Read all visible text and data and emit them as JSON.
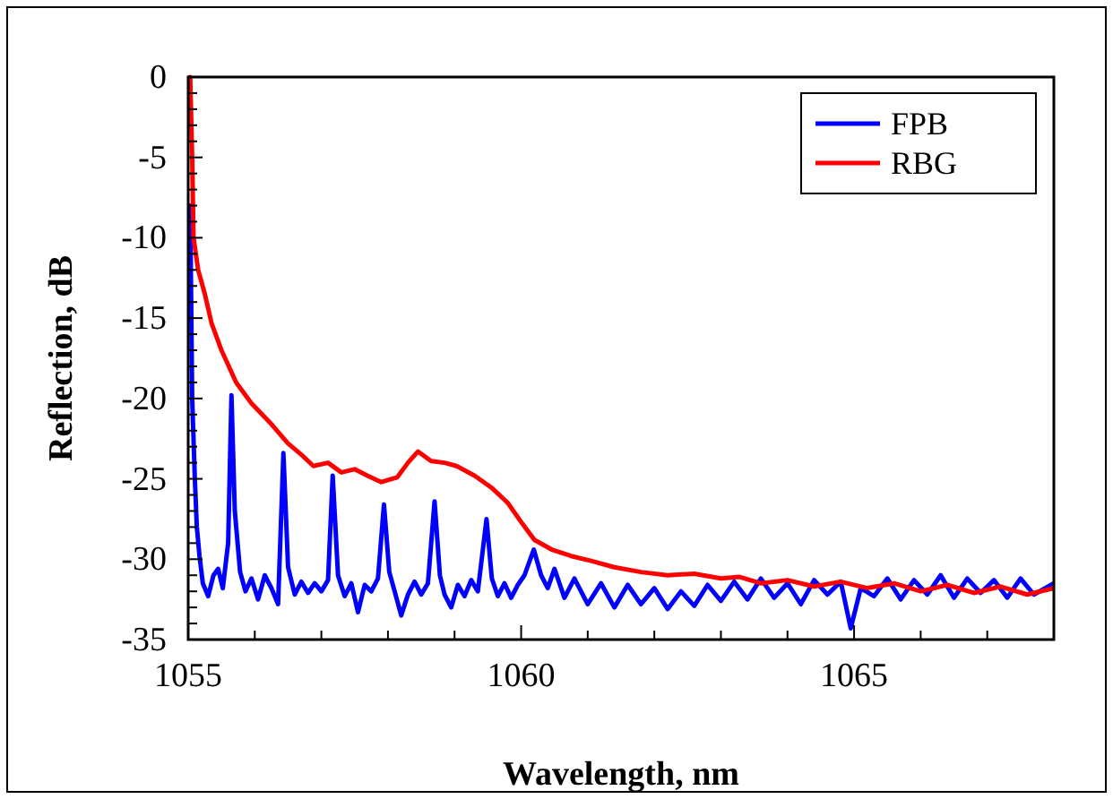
{
  "chart_data": {
    "type": "line",
    "xlabel": "Wavelength, nm",
    "ylabel": "Reflection, dB",
    "xlim": [
      1055,
      1068
    ],
    "ylim": [
      -35,
      0
    ],
    "xticks": [
      1055,
      {
        "value": 1056,
        "label": null
      },
      {
        "value": 1057,
        "label": null
      },
      {
        "value": 1058,
        "label": null
      },
      {
        "value": 1059,
        "label": null
      },
      1060,
      {
        "value": 1061,
        "label": null
      },
      {
        "value": 1062,
        "label": null
      },
      {
        "value": 1063,
        "label": null
      },
      {
        "value": 1064,
        "label": null
      },
      1065,
      {
        "value": 1066,
        "label": null
      },
      {
        "value": 1067,
        "label": null
      }
    ],
    "yticks": [
      -35,
      -30,
      -25,
      -20,
      -15,
      -10,
      -5,
      0
    ],
    "grid": false,
    "legend": "top right",
    "marker": "none",
    "line_style": "solid",
    "series": [
      {
        "name": "FPB",
        "color": "#0000ff",
        "x": [
          1055.03,
          1055.06,
          1055.1,
          1055.13,
          1055.17,
          1055.22,
          1055.3,
          1055.38,
          1055.45,
          1055.52,
          1055.6,
          1055.65,
          1055.7,
          1055.78,
          1055.86,
          1055.95,
          1056.05,
          1056.15,
          1056.25,
          1056.35,
          1056.43,
          1056.5,
          1056.6,
          1056.7,
          1056.8,
          1056.9,
          1057.0,
          1057.1,
          1057.17,
          1057.25,
          1057.35,
          1057.45,
          1057.55,
          1057.65,
          1057.75,
          1057.85,
          1057.94,
          1058.02,
          1058.1,
          1058.2,
          1058.3,
          1058.4,
          1058.5,
          1058.6,
          1058.7,
          1058.78,
          1058.85,
          1058.95,
          1059.05,
          1059.15,
          1059.25,
          1059.35,
          1059.48,
          1059.56,
          1059.65,
          1059.75,
          1059.85,
          1059.95,
          1060.05,
          1060.19,
          1060.3,
          1060.4,
          1060.5,
          1060.65,
          1060.8,
          1061.0,
          1061.2,
          1061.4,
          1061.6,
          1061.8,
          1062.0,
          1062.2,
          1062.4,
          1062.6,
          1062.8,
          1063.0,
          1063.2,
          1063.4,
          1063.6,
          1063.8,
          1064.0,
          1064.2,
          1064.4,
          1064.6,
          1064.8,
          1064.95,
          1065.1,
          1065.3,
          1065.5,
          1065.7,
          1065.9,
          1066.1,
          1066.3,
          1066.5,
          1066.7,
          1066.9,
          1067.1,
          1067.3,
          1067.5,
          1067.7,
          1068.0
        ],
        "values": [
          -8,
          -20,
          -25,
          -28,
          -29.8,
          -31.5,
          -32.3,
          -31,
          -30.6,
          -31.8,
          -29,
          -19.8,
          -27,
          -30.8,
          -32,
          -31.2,
          -32.5,
          -31,
          -31.8,
          -32.8,
          -23.4,
          -30.5,
          -32.2,
          -31.4,
          -32.1,
          -31.5,
          -32,
          -31.3,
          -24.8,
          -31,
          -32.3,
          -31.5,
          -33.3,
          -31.6,
          -32,
          -31.2,
          -26.6,
          -30.8,
          -32,
          -33.5,
          -32.2,
          -31.4,
          -32.2,
          -31.5,
          -26.4,
          -31,
          -32.2,
          -33,
          -31.6,
          -32.3,
          -31.3,
          -32,
          -27.5,
          -31.2,
          -32.3,
          -31.5,
          -32.4,
          -31.6,
          -31,
          -29.4,
          -31,
          -31.8,
          -30.6,
          -32.4,
          -31.2,
          -32.8,
          -31.5,
          -33,
          -31.6,
          -32.8,
          -31.8,
          -33.1,
          -32,
          -32.9,
          -31.6,
          -32.6,
          -31.4,
          -32.5,
          -31.2,
          -32.4,
          -31.5,
          -32.8,
          -31.3,
          -32.2,
          -31.4,
          -34.3,
          -31.8,
          -32.3,
          -31.2,
          -32.5,
          -31.3,
          -32.2,
          -31,
          -32.4,
          -31.2,
          -32.1,
          -31.3,
          -32.4,
          -31.2,
          -32.2,
          -31.5
        ]
      },
      {
        "name": "RBG",
        "color": "#ff0000",
        "x": [
          1055.03,
          1055.06,
          1055.08,
          1055.15,
          1055.25,
          1055.35,
          1055.5,
          1055.72,
          1055.95,
          1056.25,
          1056.5,
          1056.7,
          1056.88,
          1057.1,
          1057.3,
          1057.5,
          1057.69,
          1057.9,
          1058.14,
          1058.3,
          1058.45,
          1058.65,
          1058.85,
          1059.03,
          1059.3,
          1059.57,
          1059.8,
          1060.02,
          1060.2,
          1060.46,
          1060.75,
          1061.05,
          1061.4,
          1061.8,
          1062.2,
          1062.6,
          1063.0,
          1063.28,
          1063.6,
          1064.0,
          1064.4,
          1064.8,
          1065.2,
          1065.6,
          1066.0,
          1066.4,
          1066.8,
          1067.2,
          1067.6,
          1068.0
        ],
        "values": [
          0,
          -5,
          -10,
          -12,
          -13.5,
          -15.3,
          -17,
          -19,
          -20.3,
          -21.6,
          -22.8,
          -23.5,
          -24.2,
          -24,
          -24.6,
          -24.4,
          -24.8,
          -25.2,
          -24.9,
          -24,
          -23.3,
          -23.9,
          -24,
          -24.2,
          -24.8,
          -25.6,
          -26.5,
          -27.8,
          -28.8,
          -29.4,
          -29.8,
          -30.1,
          -30.5,
          -30.8,
          -31,
          -30.9,
          -31.2,
          -31.1,
          -31.5,
          -31.3,
          -31.7,
          -31.4,
          -31.8,
          -31.5,
          -32,
          -31.6,
          -32.1,
          -31.7,
          -32.2,
          -31.8
        ]
      }
    ]
  }
}
